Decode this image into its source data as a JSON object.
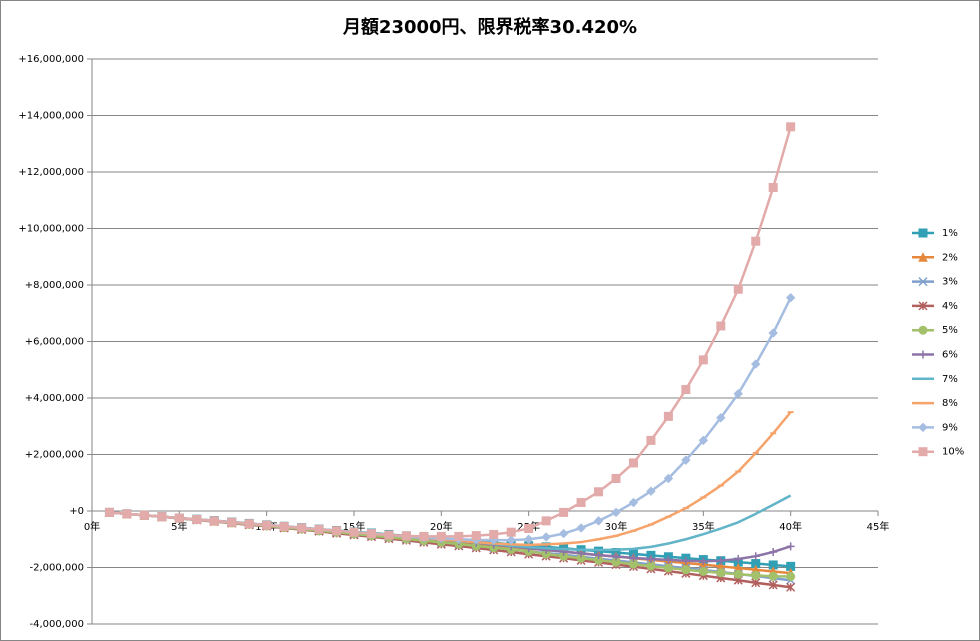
{
  "chart_data": {
    "type": "line",
    "title": "月額23000円、限界税率30.420%",
    "x": [
      1,
      2,
      3,
      4,
      5,
      6,
      7,
      8,
      9,
      10,
      11,
      12,
      13,
      14,
      15,
      16,
      17,
      18,
      19,
      20,
      21,
      22,
      23,
      24,
      25,
      26,
      27,
      28,
      29,
      30,
      31,
      32,
      33,
      34,
      35,
      36,
      37,
      38,
      39,
      40
    ],
    "xlim": [
      0,
      45
    ],
    "xticks": [
      {
        "value": 0,
        "label": "0年"
      },
      {
        "value": 5,
        "label": "5年"
      },
      {
        "value": 10,
        "label": "10年"
      },
      {
        "value": 15,
        "label": "15年"
      },
      {
        "value": 20,
        "label": "20年"
      },
      {
        "value": 25,
        "label": "25年"
      },
      {
        "value": 30,
        "label": "30年"
      },
      {
        "value": 35,
        "label": "35年"
      },
      {
        "value": 40,
        "label": "40年"
      },
      {
        "value": 45,
        "label": "45年"
      }
    ],
    "ylim": [
      -4000000,
      16000000
    ],
    "yticks": [
      {
        "value": -4000000,
        "label": "-4,000,000"
      },
      {
        "value": -2000000,
        "label": "-2,000,000"
      },
      {
        "value": 0,
        "label": "+0"
      },
      {
        "value": 2000000,
        "label": "+2,000,000"
      },
      {
        "value": 4000000,
        "label": "+4,000,000"
      },
      {
        "value": 6000000,
        "label": "+6,000,000"
      },
      {
        "value": 8000000,
        "label": "+8,000,000"
      },
      {
        "value": 10000000,
        "label": "+10,000,000"
      },
      {
        "value": 12000000,
        "label": "+12,000,000"
      },
      {
        "value": 14000000,
        "label": "+14,000,000"
      },
      {
        "value": 16000000,
        "label": "+16,000,000"
      }
    ],
    "negative_tick_color": "#ff0000",
    "grid": true,
    "legend": "right",
    "series": [
      {
        "name": "1%",
        "color": "#31a0b4",
        "marker": "square",
        "values": [
          -50000,
          -100000,
          -150000,
          -200000,
          -250000,
          -290000,
          -340000,
          -390000,
          -440000,
          -490000,
          -540000,
          -590000,
          -640000,
          -690000,
          -740000,
          -780000,
          -830000,
          -880000,
          -930000,
          -980000,
          -1030000,
          -1080000,
          -1130000,
          -1180000,
          -1230000,
          -1270000,
          -1320000,
          -1370000,
          -1420000,
          -1470000,
          -1520000,
          -1570000,
          -1620000,
          -1670000,
          -1720000,
          -1760000,
          -1810000,
          -1860000,
          -1910000,
          -1960000
        ]
      },
      {
        "name": "2%",
        "color": "#e6883c",
        "marker": "triangle",
        "values": [
          -50000,
          -100000,
          -150000,
          -200000,
          -250000,
          -300000,
          -360000,
          -410000,
          -460000,
          -510000,
          -570000,
          -620000,
          -670000,
          -720000,
          -780000,
          -830000,
          -890000,
          -940000,
          -1000000,
          -1050000,
          -1110000,
          -1160000,
          -1220000,
          -1270000,
          -1330000,
          -1380000,
          -1440000,
          -1500000,
          -1560000,
          -1610000,
          -1670000,
          -1730000,
          -1790000,
          -1840000,
          -1900000,
          -1960000,
          -2020000,
          -2080000,
          -2140000,
          -2200000
        ]
      },
      {
        "name": "3%",
        "color": "#7f9fcc",
        "marker": "x",
        "values": [
          -50000,
          -100000,
          -150000,
          -200000,
          -260000,
          -310000,
          -360000,
          -420000,
          -470000,
          -530000,
          -580000,
          -640000,
          -700000,
          -750000,
          -810000,
          -870000,
          -930000,
          -990000,
          -1050000,
          -1110000,
          -1170000,
          -1240000,
          -1300000,
          -1360000,
          -1430000,
          -1490000,
          -1550000,
          -1620000,
          -1690000,
          -1750000,
          -1820000,
          -1890000,
          -1960000,
          -2020000,
          -2090000,
          -2160000,
          -2230000,
          -2300000,
          -2380000,
          -2450000
        ]
      },
      {
        "name": "4%",
        "color": "#b2605e",
        "marker": "star",
        "values": [
          -50000,
          -100000,
          -150000,
          -210000,
          -260000,
          -320000,
          -370000,
          -430000,
          -490000,
          -540000,
          -600000,
          -660000,
          -720000,
          -790000,
          -850000,
          -910000,
          -980000,
          -1040000,
          -1110000,
          -1180000,
          -1240000,
          -1310000,
          -1380000,
          -1450000,
          -1530000,
          -1600000,
          -1670000,
          -1750000,
          -1820000,
          -1900000,
          -1970000,
          -2050000,
          -2130000,
          -2210000,
          -2290000,
          -2370000,
          -2450000,
          -2540000,
          -2620000,
          -2700000
        ]
      },
      {
        "name": "5%",
        "color": "#a2c16a",
        "marker": "circle",
        "values": [
          -50000,
          -100000,
          -150000,
          -200000,
          -260000,
          -310000,
          -360000,
          -420000,
          -470000,
          -530000,
          -580000,
          -640000,
          -700000,
          -750000,
          -810000,
          -870000,
          -930000,
          -990000,
          -1050000,
          -1110000,
          -1170000,
          -1240000,
          -1300000,
          -1360000,
          -1430000,
          -1520000,
          -1600000,
          -1670000,
          -1740000,
          -1810000,
          -1880000,
          -1950000,
          -2020000,
          -2080000,
          -2140000,
          -2190000,
          -2240000,
          -2280000,
          -2310000,
          -2320000
        ]
      },
      {
        "name": "6%",
        "color": "#8c73a8",
        "marker": "plus",
        "values": [
          -50000,
          -100000,
          -150000,
          -200000,
          -250000,
          -300000,
          -350000,
          -400000,
          -450000,
          -500000,
          -550000,
          -600000,
          -650000,
          -700000,
          -750000,
          -800000,
          -850000,
          -900000,
          -950000,
          -1000000,
          -1060000,
          -1120000,
          -1190000,
          -1250000,
          -1320000,
          -1380000,
          -1440000,
          -1500000,
          -1560000,
          -1610000,
          -1660000,
          -1700000,
          -1730000,
          -1760000,
          -1780000,
          -1760000,
          -1700000,
          -1600000,
          -1450000,
          -1250000
        ]
      },
      {
        "name": "7%",
        "color": "#62b4c8",
        "marker": "none",
        "values": [
          -50000,
          -100000,
          -150000,
          -200000,
          -250000,
          -300000,
          -350000,
          -400000,
          -450000,
          -500000,
          -550000,
          -600000,
          -650000,
          -700000,
          -750000,
          -800000,
          -850000,
          -900000,
          -950000,
          -1000000,
          -1060000,
          -1110000,
          -1170000,
          -1230000,
          -1280000,
          -1320000,
          -1350000,
          -1370000,
          -1380000,
          -1370000,
          -1340000,
          -1270000,
          -1150000,
          -1000000,
          -820000,
          -620000,
          -400000,
          -100000,
          220000,
          550000
        ]
      },
      {
        "name": "8%",
        "color": "#f5a36b",
        "marker": "dash",
        "values": [
          -50000,
          -100000,
          -150000,
          -200000,
          -250000,
          -300000,
          -350000,
          -400000,
          -450000,
          -500000,
          -550000,
          -600000,
          -650000,
          -700000,
          -750000,
          -800000,
          -850000,
          -900000,
          -950000,
          -1000000,
          -1050000,
          -1100000,
          -1150000,
          -1180000,
          -1200000,
          -1180000,
          -1150000,
          -1100000,
          -1000000,
          -880000,
          -700000,
          -480000,
          -200000,
          100000,
          480000,
          900000,
          1400000,
          2050000,
          2750000,
          3500000
        ]
      },
      {
        "name": "9%",
        "color": "#a5bde0",
        "marker": "diamond",
        "values": [
          -50000,
          -100000,
          -150000,
          -200000,
          -250000,
          -300000,
          -350000,
          -400000,
          -450000,
          -500000,
          -550000,
          -600000,
          -650000,
          -700000,
          -750000,
          -800000,
          -850000,
          -900000,
          -950000,
          -970000,
          -1000000,
          -1020000,
          -1030000,
          -1030000,
          -1000000,
          -920000,
          -800000,
          -600000,
          -350000,
          -50000,
          300000,
          700000,
          1150000,
          1800000,
          2500000,
          3300000,
          4150000,
          5200000,
          6300000,
          7550000
        ]
      },
      {
        "name": "10%",
        "color": "#e3aaaa",
        "marker": "square",
        "values": [
          -50000,
          -100000,
          -150000,
          -200000,
          -250000,
          -300000,
          -350000,
          -400000,
          -450000,
          -500000,
          -550000,
          -600000,
          -650000,
          -700000,
          -750000,
          -800000,
          -850000,
          -880000,
          -900000,
          -900000,
          -900000,
          -870000,
          -830000,
          -750000,
          -620000,
          -350000,
          -50000,
          300000,
          680000,
          1150000,
          1700000,
          2500000,
          3350000,
          4300000,
          5350000,
          6550000,
          7850000,
          9550000,
          11450000,
          13600000
        ]
      }
    ]
  }
}
